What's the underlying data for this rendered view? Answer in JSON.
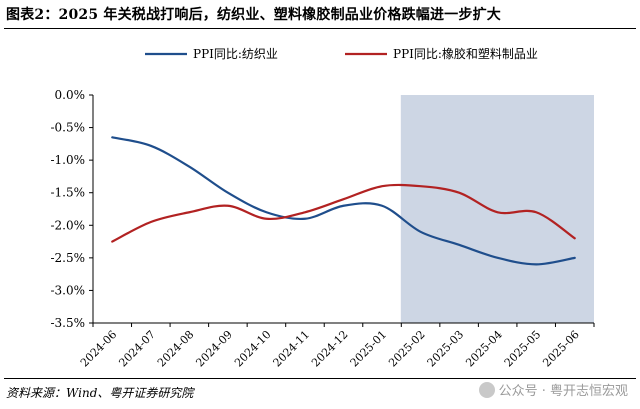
{
  "header": {
    "title": "图表2：2025 年关税战打响后，纺织业、塑料橡胶制品业价格跌幅进一步扩大"
  },
  "footer": {
    "source": "资料来源：Wind、粤开证券研究院",
    "watermark": "公众号 · 粤开志恒宏观"
  },
  "colors": {
    "series_1": "#1f4e8c",
    "series_2": "#b22222",
    "shade": "#cdd6e4",
    "axis": "#000000"
  },
  "chart_data": {
    "type": "line",
    "title": "",
    "xlabel": "",
    "ylabel": "",
    "categories": [
      "2024-06",
      "2024-07",
      "2024-08",
      "2024-09",
      "2024-10",
      "2024-11",
      "2024-12",
      "2025-01",
      "2025-02",
      "2025-03",
      "2025-04",
      "2025-05",
      "2025-06"
    ],
    "y_tick_labels": [
      "0.0%",
      "-0.5%",
      "-1.0%",
      "-1.5%",
      "-2.0%",
      "-2.5%",
      "-3.0%",
      "-3.5%"
    ],
    "ylim": [
      -3.5,
      0.0
    ],
    "yticks": [
      0.0,
      -0.5,
      -1.0,
      -1.5,
      -2.0,
      -2.5,
      -3.0,
      -3.5
    ],
    "series": [
      {
        "name": "PPI同比:纺织业",
        "color": "#1f4e8c",
        "values": [
          -0.65,
          -0.78,
          -1.1,
          -1.5,
          -1.8,
          -1.9,
          -1.7,
          -1.7,
          -2.1,
          -2.3,
          -2.5,
          -2.6,
          -2.5
        ]
      },
      {
        "name": "PPI同比:橡胶和塑料制品业",
        "color": "#b22222",
        "values": [
          -2.25,
          -1.95,
          -1.8,
          -1.7,
          -1.9,
          -1.8,
          -1.6,
          -1.4,
          -1.4,
          -1.5,
          -1.8,
          -1.8,
          -2.2
        ]
      }
    ],
    "shaded_range": [
      "2025-02",
      "2025-06"
    ],
    "legend_position": "top",
    "grid": false
  }
}
